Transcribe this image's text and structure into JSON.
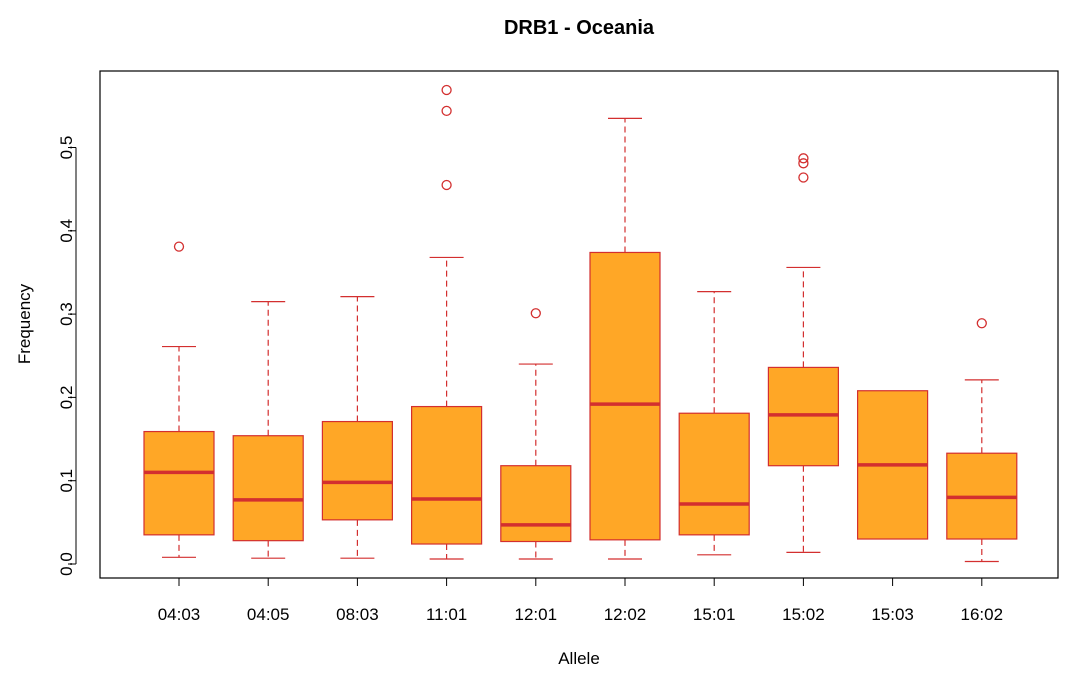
{
  "chart_data": {
    "type": "box",
    "title": "DRB1 - Oceania",
    "xlabel": "Allele",
    "ylabel": "Frequency",
    "ylim": [
      -0.02,
      0.59
    ],
    "yticks": [
      "0.0",
      "0.1",
      "0.2",
      "0.3",
      "0.4",
      "0.5"
    ],
    "colors": {
      "box_fill": "#FFA726",
      "border": "#D32F2F"
    },
    "categories": [
      "04:03",
      "04:05",
      "08:03",
      "11:01",
      "12:01",
      "12:02",
      "15:01",
      "15:02",
      "15:03",
      "16:02"
    ],
    "boxes": [
      {
        "whisker_low": 0.008,
        "q1": 0.035,
        "median": 0.11,
        "q3": 0.159,
        "whisker_high": 0.261,
        "outliers": [
          0.381
        ]
      },
      {
        "whisker_low": 0.007,
        "q1": 0.028,
        "median": 0.077,
        "q3": 0.154,
        "whisker_high": 0.315,
        "outliers": []
      },
      {
        "whisker_low": 0.007,
        "q1": 0.053,
        "median": 0.098,
        "q3": 0.171,
        "whisker_high": 0.321,
        "outliers": []
      },
      {
        "whisker_low": 0.006,
        "q1": 0.024,
        "median": 0.078,
        "q3": 0.189,
        "whisker_high": 0.368,
        "outliers": [
          0.455,
          0.544,
          0.569
        ]
      },
      {
        "whisker_low": 0.006,
        "q1": 0.027,
        "median": 0.047,
        "q3": 0.118,
        "whisker_high": 0.24,
        "outliers": [
          0.301
        ]
      },
      {
        "whisker_low": 0.006,
        "q1": 0.029,
        "median": 0.192,
        "q3": 0.374,
        "whisker_high": 0.535,
        "outliers": []
      },
      {
        "whisker_low": 0.011,
        "q1": 0.035,
        "median": 0.072,
        "q3": 0.181,
        "whisker_high": 0.327,
        "outliers": []
      },
      {
        "whisker_low": 0.014,
        "q1": 0.118,
        "median": 0.179,
        "q3": 0.236,
        "whisker_high": 0.356,
        "outliers": [
          0.464,
          0.481,
          0.487
        ]
      },
      {
        "whisker_low": 0.03,
        "q1": 0.03,
        "median": 0.119,
        "q3": 0.208,
        "whisker_high": 0.208,
        "outliers": []
      },
      {
        "whisker_low": 0.003,
        "q1": 0.03,
        "median": 0.08,
        "q3": 0.133,
        "whisker_high": 0.221,
        "outliers": [
          0.289
        ]
      }
    ]
  }
}
